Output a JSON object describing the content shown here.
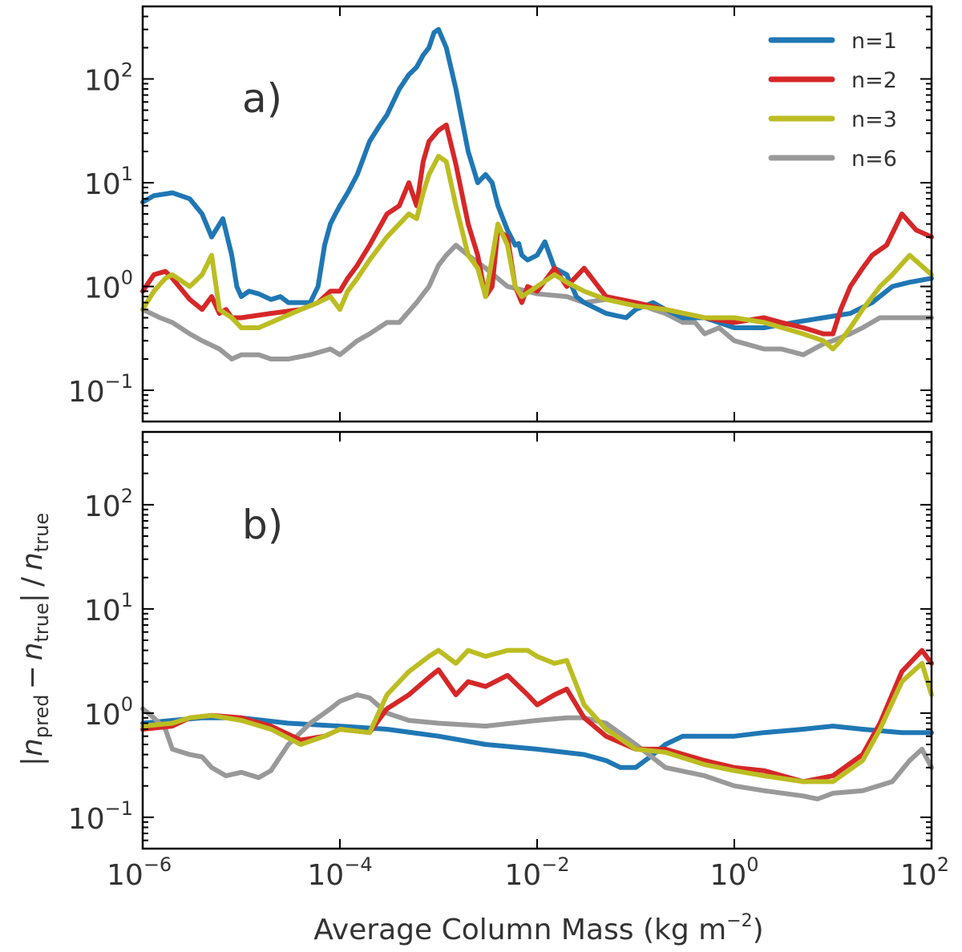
{
  "chart_data": {
    "type": "line",
    "x_scale": "log",
    "y_scale": "log",
    "xlim": [
      1e-06,
      100
    ],
    "ylim": [
      0.05,
      500
    ],
    "xlabel": "Average Column Mass (kg m−2)",
    "xlabel_main": "Average Column Mass (kg m",
    "xlabel_exp": "−2",
    "xlabel_close": ")",
    "ylabel": "|npred − ntrue| / ntrue",
    "ylabel_parts": {
      "bar_open": "|",
      "n1": "n",
      "sub1": "pred",
      "minus": "−",
      "n2": "n",
      "sub2": "true",
      "bar_close": "|",
      "slash": "/",
      "n3": "n",
      "sub3": "true"
    },
    "x_ticks": [
      {
        "value": 1e-06,
        "base": "10",
        "exp": "−6"
      },
      {
        "value": 0.0001,
        "base": "10",
        "exp": "−4"
      },
      {
        "value": 0.01,
        "base": "10",
        "exp": "−2"
      },
      {
        "value": 1,
        "base": "10",
        "exp": "0"
      },
      {
        "value": 100,
        "base": "10",
        "exp": "2"
      }
    ],
    "y_ticks": [
      {
        "value": 0.1,
        "base": "10",
        "exp": "−1"
      },
      {
        "value": 1,
        "base": "10",
        "exp": "0"
      },
      {
        "value": 10,
        "base": "10",
        "exp": "1"
      },
      {
        "value": 100,
        "base": "10",
        "exp": "2"
      }
    ],
    "legend": {
      "placement": "top-right",
      "entries": [
        {
          "label": "n=1",
          "color": "#1f77b4"
        },
        {
          "label": "n=2",
          "color": "#d62728"
        },
        {
          "label": "n=3",
          "color": "#bcbd22"
        },
        {
          "label": "n=6",
          "color": "#999999"
        }
      ]
    },
    "panels": [
      {
        "label": "a)",
        "series": [
          {
            "name": "n=1",
            "color": "#1f77b4",
            "x": [
              1e-06,
              1.3e-06,
              2e-06,
              3e-06,
              4e-06,
              5e-06,
              6.5e-06,
              8e-06,
              9e-06,
              1e-05,
              1.2e-05,
              1.5e-05,
              2e-05,
              2.5e-05,
              3e-05,
              4e-05,
              5e-05,
              6e-05,
              7e-05,
              8e-05,
              9e-05,
              0.0001,
              0.00012,
              0.00015,
              0.0002,
              0.00025,
              0.0003,
              0.0004,
              0.0005,
              0.0006,
              0.0007,
              0.0008,
              0.0009,
              0.001,
              0.0012,
              0.0015,
              0.002,
              0.0025,
              0.003,
              0.0035,
              0.004,
              0.005,
              0.006,
              0.0065,
              0.007,
              0.008,
              0.01,
              0.012,
              0.015,
              0.02,
              0.025,
              0.03,
              0.05,
              0.08,
              0.1,
              0.15,
              0.2,
              0.3,
              0.5,
              1,
              2,
              4,
              8,
              15,
              25,
              40,
              60,
              100
            ],
            "y": [
              6.5,
              7.5,
              8.0,
              7.0,
              5.0,
              3.0,
              4.5,
              2.0,
              1.0,
              0.8,
              0.9,
              0.85,
              0.75,
              0.8,
              0.7,
              0.7,
              0.7,
              1.0,
              2.5,
              4.0,
              5.0,
              6.0,
              8.0,
              12.0,
              25.0,
              35.0,
              45.0,
              80.0,
              110.0,
              130.0,
              170.0,
              200.0,
              280.0,
              300.0,
              200.0,
              80.0,
              20.0,
              10.0,
              12.0,
              10.0,
              6.0,
              3.5,
              2.5,
              2.6,
              2.0,
              1.8,
              2.0,
              2.7,
              1.5,
              1.3,
              0.8,
              0.7,
              0.55,
              0.5,
              0.6,
              0.7,
              0.6,
              0.5,
              0.5,
              0.4,
              0.4,
              0.45,
              0.5,
              0.55,
              0.7,
              1.0,
              1.1,
              1.2
            ]
          },
          {
            "name": "n=2",
            "color": "#d62728",
            "x": [
              1e-06,
              1.3e-06,
              1.7e-06,
              2e-06,
              3e-06,
              4e-06,
              5e-06,
              6e-06,
              7e-06,
              8e-06,
              1e-05,
              2e-05,
              4e-05,
              6e-05,
              8e-05,
              0.0001,
              0.00012,
              0.00015,
              0.0002,
              0.0003,
              0.0004,
              0.0005,
              0.0006,
              0.0007,
              0.0008,
              0.001,
              0.0012,
              0.0015,
              0.002,
              0.0025,
              0.003,
              0.0035,
              0.004,
              0.005,
              0.006,
              0.007,
              0.008,
              0.01,
              0.015,
              0.02,
              0.03,
              0.05,
              0.1,
              0.2,
              0.5,
              1,
              2,
              3,
              5,
              8,
              10,
              12,
              15,
              20,
              25,
              35,
              50,
              70,
              100
            ],
            "y": [
              0.9,
              1.3,
              1.4,
              1.2,
              0.75,
              0.6,
              0.8,
              0.55,
              0.6,
              0.5,
              0.5,
              0.55,
              0.6,
              0.7,
              0.9,
              0.9,
              1.2,
              1.6,
              2.5,
              5.0,
              6.0,
              10.0,
              6.0,
              16.0,
              25.0,
              32.0,
              36.0,
              15.0,
              4.0,
              2.0,
              0.8,
              1.0,
              3.5,
              3.0,
              1.0,
              0.7,
              1.0,
              0.9,
              1.5,
              1.0,
              1.5,
              0.8,
              0.7,
              0.6,
              0.5,
              0.45,
              0.5,
              0.45,
              0.4,
              0.35,
              0.35,
              0.6,
              1.0,
              1.5,
              2.0,
              2.5,
              5.0,
              3.5,
              3.0
            ]
          },
          {
            "name": "n=3",
            "color": "#bcbd22",
            "x": [
              1e-06,
              1.3e-06,
              1.7e-06,
              2e-06,
              3e-06,
              4e-06,
              5e-06,
              6e-06,
              8e-06,
              1e-05,
              1.5e-05,
              2e-05,
              4e-05,
              6e-05,
              8e-05,
              0.0001,
              0.00012,
              0.00015,
              0.0002,
              0.0003,
              0.0004,
              0.0005,
              0.0006,
              0.0007,
              0.0008,
              0.001,
              0.0012,
              0.0015,
              0.002,
              0.0025,
              0.003,
              0.004,
              0.005,
              0.006,
              0.007,
              0.01,
              0.015,
              0.02,
              0.03,
              0.05,
              0.1,
              0.2,
              0.5,
              1,
              2,
              5,
              8,
              10,
              12,
              15,
              20,
              30,
              40,
              60,
              100
            ],
            "y": [
              0.6,
              0.9,
              1.2,
              1.3,
              1.0,
              1.3,
              2.0,
              0.6,
              0.5,
              0.4,
              0.4,
              0.45,
              0.6,
              0.7,
              0.8,
              0.6,
              0.9,
              1.2,
              1.8,
              3.0,
              4.0,
              5.0,
              4.5,
              8.0,
              12.0,
              18.0,
              16.0,
              6.0,
              2.0,
              1.5,
              0.8,
              4.0,
              2.5,
              1.0,
              0.8,
              1.0,
              1.3,
              1.1,
              0.9,
              0.75,
              0.65,
              0.6,
              0.5,
              0.5,
              0.45,
              0.35,
              0.3,
              0.25,
              0.3,
              0.4,
              0.6,
              1.0,
              1.3,
              2.0,
              1.3
            ]
          },
          {
            "name": "n=6",
            "color": "#999999",
            "x": [
              1e-06,
              1.5e-06,
              2e-06,
              3e-06,
              4e-06,
              6e-06,
              8e-06,
              1e-05,
              1.5e-05,
              2e-05,
              3e-05,
              5e-05,
              8e-05,
              0.0001,
              0.00015,
              0.0002,
              0.0003,
              0.0004,
              0.0006,
              0.0008,
              0.001,
              0.0012,
              0.0015,
              0.002,
              0.003,
              0.005,
              0.008,
              0.01,
              0.02,
              0.03,
              0.05,
              0.08,
              0.1,
              0.15,
              0.2,
              0.3,
              0.4,
              0.5,
              0.7,
              1,
              2,
              3,
              5,
              8,
              10,
              15,
              20,
              30,
              50,
              70,
              100
            ],
            "y": [
              0.6,
              0.5,
              0.45,
              0.35,
              0.3,
              0.25,
              0.2,
              0.22,
              0.22,
              0.2,
              0.2,
              0.22,
              0.25,
              0.22,
              0.3,
              0.35,
              0.45,
              0.45,
              0.7,
              1.0,
              1.6,
              2.0,
              2.5,
              2.0,
              1.5,
              1.0,
              0.9,
              0.85,
              0.8,
              0.7,
              0.75,
              0.7,
              0.7,
              0.6,
              0.55,
              0.45,
              0.45,
              0.35,
              0.4,
              0.3,
              0.25,
              0.25,
              0.22,
              0.28,
              0.3,
              0.35,
              0.4,
              0.5,
              0.5,
              0.5,
              0.5
            ]
          }
        ]
      },
      {
        "label": "b)",
        "series": [
          {
            "name": "n=1",
            "color": "#1f77b4",
            "x": [
              1e-06,
              2e-06,
              4e-06,
              1e-05,
              3e-05,
              0.0001,
              0.0003,
              0.001,
              0.003,
              0.01,
              0.03,
              0.05,
              0.07,
              0.1,
              0.15,
              0.2,
              0.3,
              0.5,
              1,
              2,
              5,
              10,
              20,
              50,
              100
            ],
            "y": [
              0.8,
              0.85,
              0.9,
              0.9,
              0.8,
              0.75,
              0.7,
              0.6,
              0.5,
              0.45,
              0.4,
              0.35,
              0.3,
              0.3,
              0.4,
              0.5,
              0.6,
              0.6,
              0.6,
              0.65,
              0.7,
              0.75,
              0.7,
              0.65,
              0.65
            ]
          },
          {
            "name": "n=2",
            "color": "#d62728",
            "x": [
              1e-06,
              2e-06,
              3e-06,
              5e-06,
              1e-05,
              2e-05,
              4e-05,
              7e-05,
              0.0001,
              0.0002,
              0.0003,
              0.0005,
              0.0008,
              0.001,
              0.0015,
              0.002,
              0.003,
              0.005,
              0.008,
              0.01,
              0.015,
              0.02,
              0.03,
              0.05,
              0.1,
              0.2,
              0.5,
              1,
              2,
              5,
              10,
              20,
              30,
              50,
              80,
              100
            ],
            "y": [
              0.7,
              0.75,
              0.9,
              0.95,
              0.9,
              0.75,
              0.55,
              0.6,
              0.7,
              0.65,
              1.1,
              1.5,
              2.2,
              2.6,
              1.5,
              2.0,
              1.8,
              2.3,
              1.5,
              1.2,
              1.5,
              1.7,
              0.9,
              0.6,
              0.45,
              0.45,
              0.35,
              0.3,
              0.28,
              0.22,
              0.25,
              0.4,
              0.8,
              2.5,
              4.0,
              3.0
            ]
          },
          {
            "name": "n=3",
            "color": "#bcbd22",
            "x": [
              1e-06,
              2e-06,
              3e-06,
              5e-06,
              1e-05,
              2e-05,
              4e-05,
              7e-05,
              0.0001,
              0.0002,
              0.0003,
              0.0005,
              0.0008,
              0.001,
              0.0015,
              0.002,
              0.003,
              0.005,
              0.008,
              0.01,
              0.015,
              0.02,
              0.03,
              0.05,
              0.1,
              0.2,
              0.5,
              1,
              2,
              5,
              10,
              20,
              30,
              50,
              80,
              100
            ],
            "y": [
              0.75,
              0.8,
              0.9,
              0.95,
              0.85,
              0.7,
              0.5,
              0.6,
              0.7,
              0.65,
              1.5,
              2.5,
              3.5,
              4.0,
              3.0,
              4.0,
              3.5,
              4.0,
              4.0,
              3.5,
              3.0,
              3.2,
              1.2,
              0.7,
              0.45,
              0.42,
              0.32,
              0.28,
              0.25,
              0.22,
              0.22,
              0.35,
              0.7,
              2.0,
              3.0,
              1.5
            ]
          },
          {
            "name": "n=6",
            "color": "#999999",
            "x": [
              1e-06,
              1.3e-06,
              1.7e-06,
              2e-06,
              3e-06,
              4e-06,
              5e-06,
              7e-06,
              1e-05,
              1.5e-05,
              2e-05,
              3e-05,
              5e-05,
              8e-05,
              0.0001,
              0.00015,
              0.0002,
              0.0003,
              0.0005,
              0.001,
              0.003,
              0.01,
              0.02,
              0.03,
              0.05,
              0.1,
              0.2,
              0.5,
              1,
              2,
              5,
              7,
              10,
              20,
              40,
              60,
              80,
              100
            ],
            "y": [
              1.1,
              0.9,
              0.7,
              0.45,
              0.4,
              0.38,
              0.3,
              0.25,
              0.27,
              0.24,
              0.28,
              0.5,
              0.8,
              1.1,
              1.3,
              1.5,
              1.4,
              1.0,
              0.85,
              0.8,
              0.75,
              0.85,
              0.9,
              0.9,
              0.8,
              0.5,
              0.3,
              0.25,
              0.2,
              0.18,
              0.16,
              0.15,
              0.17,
              0.18,
              0.22,
              0.35,
              0.45,
              0.3
            ]
          }
        ]
      }
    ]
  }
}
